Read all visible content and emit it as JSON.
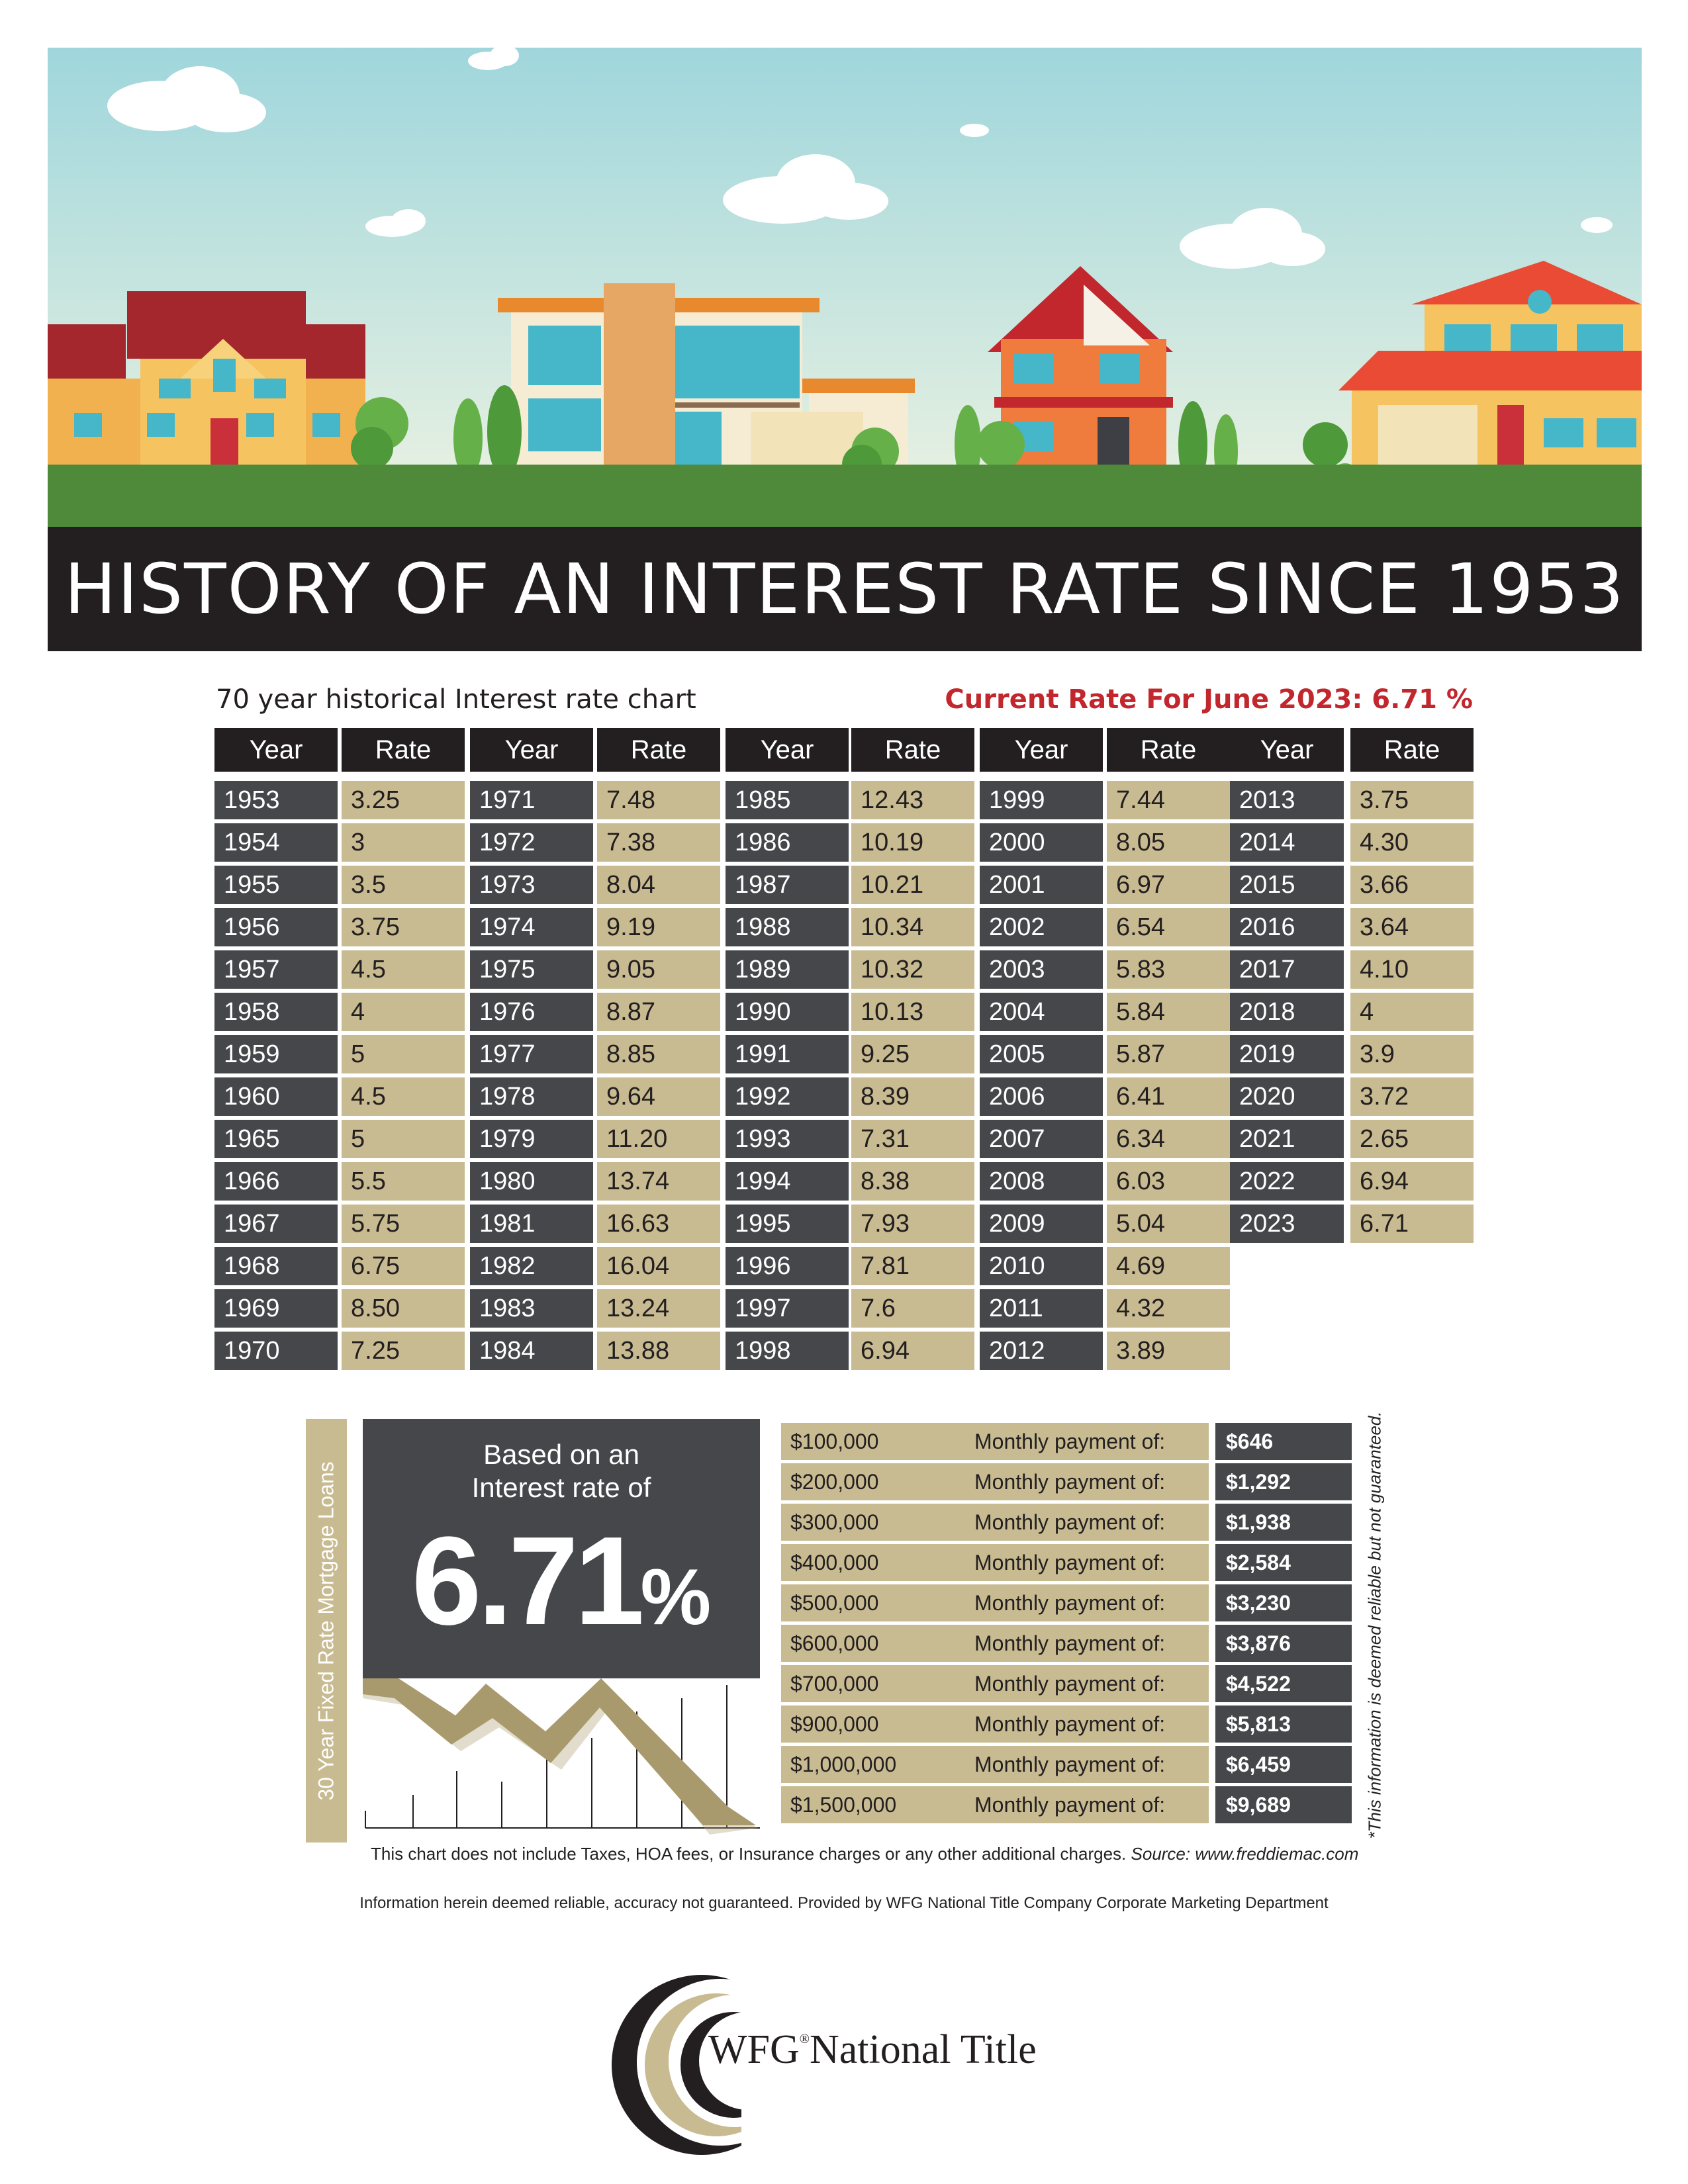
{
  "header": {
    "title": "HISTORY OF AN INTEREST RATE SINCE 1953",
    "caption": "70 year historical Interest rate chart",
    "current_rate": "Current Rate For June 2023: 6.71 %"
  },
  "table": {
    "year_label": "Year",
    "rate_label": "Rate",
    "columns": [
      [
        [
          "1953",
          "3.25"
        ],
        [
          "1954",
          "3"
        ],
        [
          "1955",
          "3.5"
        ],
        [
          "1956",
          "3.75"
        ],
        [
          "1957",
          "4.5"
        ],
        [
          "1958",
          "4"
        ],
        [
          "1959",
          "5"
        ],
        [
          "1960",
          "4.5"
        ],
        [
          "1965",
          "5"
        ],
        [
          "1966",
          "5.5"
        ],
        [
          "1967",
          "5.75"
        ],
        [
          "1968",
          "6.75"
        ],
        [
          "1969",
          "8.50"
        ],
        [
          "1970",
          "7.25"
        ]
      ],
      [
        [
          "1971",
          "7.48"
        ],
        [
          "1972",
          "7.38"
        ],
        [
          "1973",
          "8.04"
        ],
        [
          "1974",
          "9.19"
        ],
        [
          "1975",
          "9.05"
        ],
        [
          "1976",
          "8.87"
        ],
        [
          "1977",
          "8.85"
        ],
        [
          "1978",
          "9.64"
        ],
        [
          "1979",
          "11.20"
        ],
        [
          "1980",
          "13.74"
        ],
        [
          "1981",
          "16.63"
        ],
        [
          "1982",
          "16.04"
        ],
        [
          "1983",
          "13.24"
        ],
        [
          "1984",
          "13.88"
        ]
      ],
      [
        [
          "1985",
          "12.43"
        ],
        [
          "1986",
          "10.19"
        ],
        [
          "1987",
          "10.21"
        ],
        [
          "1988",
          "10.34"
        ],
        [
          "1989",
          "10.32"
        ],
        [
          "1990",
          "10.13"
        ],
        [
          "1991",
          "9.25"
        ],
        [
          "1992",
          "8.39"
        ],
        [
          "1993",
          "7.31"
        ],
        [
          "1994",
          "8.38"
        ],
        [
          "1995",
          "7.93"
        ],
        [
          "1996",
          "7.81"
        ],
        [
          "1997",
          "7.6"
        ],
        [
          "1998",
          "6.94"
        ]
      ],
      [
        [
          "1999",
          "7.44"
        ],
        [
          "2000",
          "8.05"
        ],
        [
          "2001",
          "6.97"
        ],
        [
          "2002",
          "6.54"
        ],
        [
          "2003",
          "5.83"
        ],
        [
          "2004",
          "5.84"
        ],
        [
          "2005",
          "5.87"
        ],
        [
          "2006",
          "6.41"
        ],
        [
          "2007",
          "6.34"
        ],
        [
          "2008",
          "6.03"
        ],
        [
          "2009",
          "5.04"
        ],
        [
          "2010",
          "4.69"
        ],
        [
          "2011",
          "4.32"
        ],
        [
          "2012",
          "3.89"
        ]
      ],
      [
        [
          "2013",
          "3.75"
        ],
        [
          "2014",
          "4.30"
        ],
        [
          "2015",
          "3.66"
        ],
        [
          "2016",
          "3.64"
        ],
        [
          "2017",
          "4.10"
        ],
        [
          "2018",
          "4"
        ],
        [
          "2019",
          "3.9"
        ],
        [
          "2020",
          "3.72"
        ],
        [
          "2021",
          "2.65"
        ],
        [
          "2022",
          "6.94"
        ],
        [
          "2023",
          "6.71"
        ]
      ]
    ]
  },
  "payments": {
    "side_label": "30 Year Fixed Rate Mortgage Loans",
    "based_line1": "Based on an",
    "based_line2": "Interest rate of",
    "rate_value": "6.71",
    "rate_symbol": "%",
    "row_label": "Monthly payment of:",
    "rows": [
      {
        "amount": "$100,000",
        "payment": "$646"
      },
      {
        "amount": "$200,000",
        "payment": "$1,292"
      },
      {
        "amount": "$300,000",
        "payment": "$1,938"
      },
      {
        "amount": "$400,000",
        "payment": "$2,584"
      },
      {
        "amount": "$500,000",
        "payment": "$3,230"
      },
      {
        "amount": "$600,000",
        "payment": "$3,876"
      },
      {
        "amount": "$700,000",
        "payment": "$4,522"
      },
      {
        "amount": "$900,000",
        "payment": "$5,813"
      },
      {
        "amount": "$1,000,000",
        "payment": "$6,459"
      },
      {
        "amount": "$1,500,000",
        "payment": "$9,689"
      }
    ],
    "disclaimer": "*This information is deemed reliable but not guaranteed."
  },
  "footer": {
    "note": "This chart does not include Taxes, HOA fees, or Insurance charges or any other additional charges.",
    "source": "Source: www.freddiemac.com",
    "info": "Information herein deemed reliable, accuracy not guaranteed. Provided by WFG National Title Company Corporate Marketing Department"
  },
  "logo": {
    "brand": "WFG",
    "mark": "®",
    "name": "National Title"
  },
  "colors": {
    "dark": "#231f20",
    "slate": "#45474b",
    "tan": "#c8bb91",
    "red": "#c1272d",
    "sky": "#bfe3e6",
    "grass": "#4e8a3a"
  }
}
